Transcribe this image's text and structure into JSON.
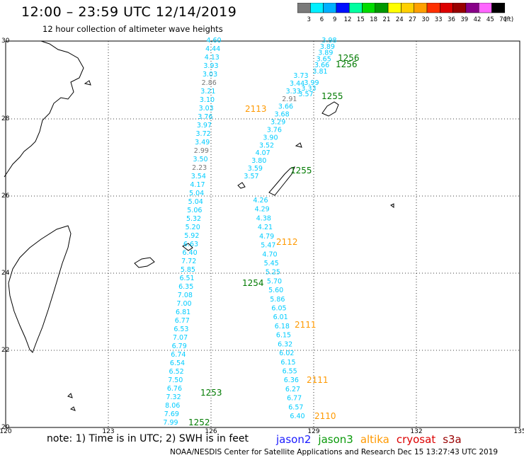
{
  "header": {
    "title": "12:00 – 23:59 UTC 12/14/2019",
    "subtitle": "12 hour collection of altimeter wave heights"
  },
  "colorbar": {
    "labels": [
      "3",
      "6",
      "9",
      "12",
      "15",
      "18",
      "21",
      "24",
      "27",
      "30",
      "33",
      "36",
      "39",
      "42",
      "45",
      "70",
      "(ft)"
    ],
    "colors": [
      "#7a7a7a",
      "#00f0ff",
      "#00b0ff",
      "#0010ff",
      "#00ffa0",
      "#00dd00",
      "#009900",
      "#ffff00",
      "#ffd000",
      "#ffa000",
      "#ff3000",
      "#dd0000",
      "#990000",
      "#880088",
      "#ff66ff",
      "#000000"
    ]
  },
  "axes": {
    "lat_labels": [
      "30",
      "28",
      "26",
      "24",
      "22",
      "20"
    ],
    "lon_labels": [
      "120",
      "123",
      "126",
      "129",
      "132",
      "135"
    ]
  },
  "tracks": {
    "t1256_a": [
      "3.98",
      "3.89",
      "3.89",
      "3.65",
      "3.66",
      "3.81"
    ],
    "t1256_b": [
      "3.99",
      "3.33",
      "3.57"
    ],
    "t1255_upper": [
      "3.73",
      "3.44",
      "3.33",
      "2.91",
      "3.66",
      "3.68",
      "3.29",
      "3.76",
      "3.90",
      "3.52",
      "4.07",
      "3.80",
      "3.59",
      "3.57"
    ],
    "t1255_lower": [
      "4.26",
      "4.29",
      "4.38",
      "4.21",
      "4.79",
      "5.47",
      "4.70",
      "5.45",
      "5.25",
      "5.70",
      "5.60",
      "5.86",
      "6.05",
      "6.01",
      "6.18",
      "6.15",
      "6.32",
      "6.02",
      "6.15",
      "6.55",
      "6.36",
      "6.27",
      "6.77",
      "6.57",
      "6.40"
    ],
    "t2113": [
      "4.60",
      "4.44",
      "4.13",
      "3.93",
      "3.03",
      "2.86",
      "3.21",
      "3.10",
      "3.03",
      "3.76",
      "3.97",
      "3.72",
      "3.49",
      "2.99",
      "3.50",
      "2.23",
      "3.54",
      "4.17",
      "5.04",
      "5.04",
      "5.06",
      "5.32",
      "5.20",
      "5.92",
      "6.63",
      "6.40",
      "7.72",
      "5.85",
      "6.51",
      "6.35",
      "7.08",
      "7.00",
      "6.81",
      "6.77",
      "6.53",
      "7.07",
      "6.79",
      "6.74",
      "6.54",
      "6.52",
      "7.50",
      "6.76",
      "7.32",
      "8.06",
      "7.69",
      "7.99"
    ],
    "labels": {
      "l1256a": "1256",
      "l1256b": "1256",
      "l1255a": "1255",
      "l1255b": "1255",
      "l2113": "2113",
      "l2112": "2112",
      "l1254": "1254",
      "l2111a": "2111",
      "l2111b": "2111",
      "l1253": "1253",
      "l2110": "2110",
      "l1252": "1252"
    }
  },
  "footer": {
    "note": "note: 1) Time is in UTC; 2) SWH is in feet",
    "legend": [
      {
        "label": "jason2",
        "color": "#1b1bff"
      },
      {
        "label": "jason3",
        "color": "#0a9a0a"
      },
      {
        "label": "altika",
        "color": "#ff9900"
      },
      {
        "label": "cryosat",
        "color": "#dd0000"
      },
      {
        "label": "s3a",
        "color": "#990000"
      }
    ],
    "credit": "NOAA/NESDIS Center for Satellite Applications and Research     Dec 15 13:27:43 UTC 2019"
  },
  "colors": {
    "cyan": "#00ccff",
    "gray": "#777777",
    "green": "#007a00",
    "orange": "#ff9900"
  }
}
